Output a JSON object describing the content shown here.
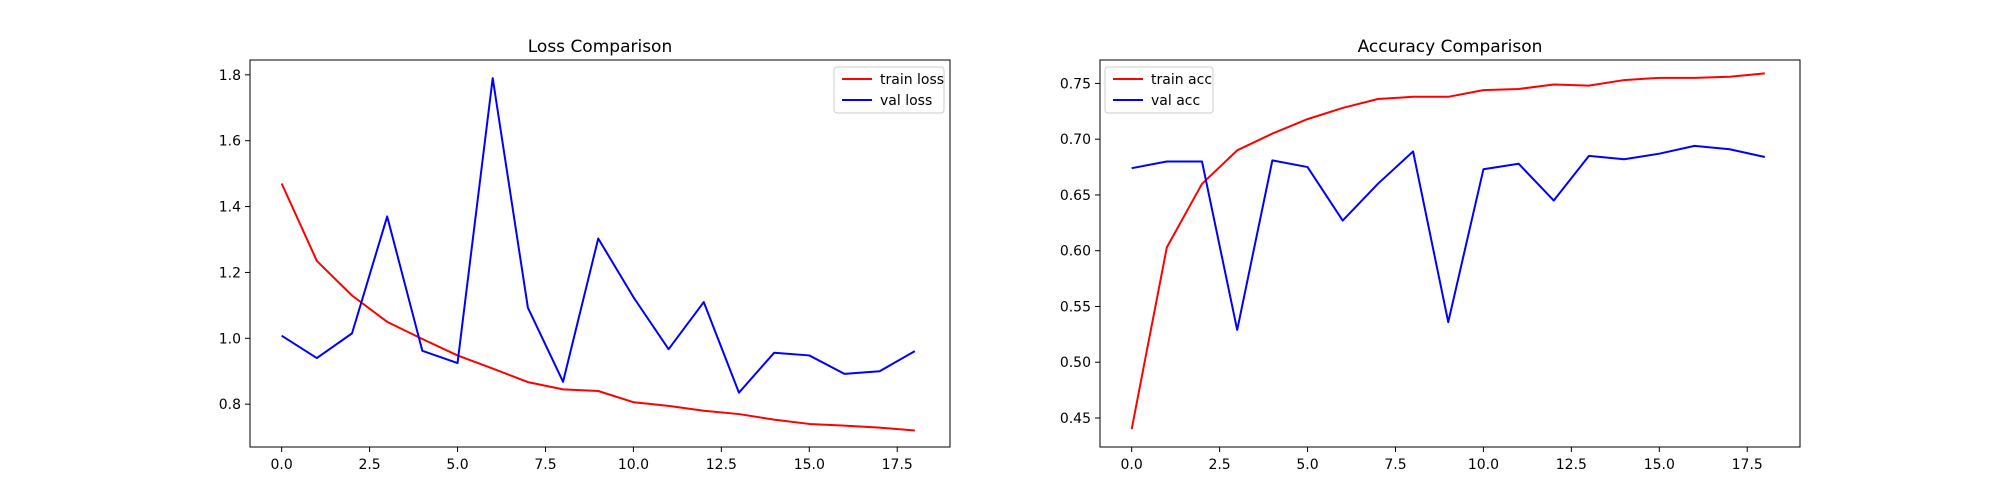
{
  "chart_data": [
    {
      "type": "line",
      "title": "Loss Comparison",
      "xlabel": "",
      "ylabel": "",
      "xlim": [
        -0.9,
        19.0
      ],
      "ylim": [
        0.67,
        1.845
      ],
      "xticks": [
        0.0,
        2.5,
        5.0,
        7.5,
        10.0,
        12.5,
        15.0,
        17.5
      ],
      "xtick_labels": [
        "0.0",
        "2.5",
        "5.0",
        "7.5",
        "10.0",
        "12.5",
        "15.0",
        "17.5"
      ],
      "yticks": [
        0.8,
        1.0,
        1.2,
        1.4,
        1.6,
        1.8
      ],
      "ytick_labels": [
        "0.8",
        "1.0",
        "1.2",
        "1.4",
        "1.6",
        "1.8"
      ],
      "grid": false,
      "legend_position": "top-right",
      "x": [
        0,
        1,
        2,
        3,
        4,
        5,
        6,
        7,
        8,
        9,
        10,
        11,
        12,
        13,
        14,
        15,
        16,
        17,
        18
      ],
      "series": [
        {
          "name": "train loss",
          "color": "#ff0000",
          "values": [
            1.47,
            1.235,
            1.13,
            1.05,
            0.998,
            0.948,
            0.908,
            0.867,
            0.845,
            0.84,
            0.806,
            0.795,
            0.78,
            0.77,
            0.753,
            0.74,
            0.735,
            0.729,
            0.72
          ]
        },
        {
          "name": "val loss",
          "color": "#0000ff",
          "values": [
            1.008,
            0.94,
            1.015,
            1.37,
            0.962,
            0.925,
            1.79,
            1.093,
            0.868,
            1.303,
            1.125,
            0.967,
            1.11,
            0.835,
            0.956,
            0.948,
            0.892,
            0.9,
            0.961
          ]
        }
      ]
    },
    {
      "type": "line",
      "title": "Accuracy Comparison",
      "xlabel": "",
      "ylabel": "",
      "xlim": [
        -0.9,
        19.0
      ],
      "ylim": [
        0.424,
        0.771
      ],
      "xticks": [
        0.0,
        2.5,
        5.0,
        7.5,
        10.0,
        12.5,
        15.0,
        17.5
      ],
      "xtick_labels": [
        "0.0",
        "2.5",
        "5.0",
        "7.5",
        "10.0",
        "12.5",
        "15.0",
        "17.5"
      ],
      "yticks": [
        0.45,
        0.5,
        0.55,
        0.6,
        0.65,
        0.7,
        0.75
      ],
      "ytick_labels": [
        "0.45",
        "0.50",
        "0.55",
        "0.60",
        "0.65",
        "0.70",
        "0.75"
      ],
      "grid": false,
      "legend_position": "top-left",
      "x": [
        0,
        1,
        2,
        3,
        4,
        5,
        6,
        7,
        8,
        9,
        10,
        11,
        12,
        13,
        14,
        15,
        16,
        17,
        18
      ],
      "series": [
        {
          "name": "train acc",
          "color": "#ff0000",
          "values": [
            0.44,
            0.603,
            0.66,
            0.69,
            0.705,
            0.718,
            0.728,
            0.736,
            0.738,
            0.738,
            0.744,
            0.745,
            0.749,
            0.748,
            0.753,
            0.755,
            0.755,
            0.756,
            0.759
          ]
        },
        {
          "name": "val acc",
          "color": "#0000ff",
          "values": [
            0.674,
            0.68,
            0.68,
            0.529,
            0.681,
            0.675,
            0.627,
            0.66,
            0.689,
            0.536,
            0.673,
            0.678,
            0.645,
            0.685,
            0.682,
            0.687,
            0.694,
            0.691,
            0.684
          ]
        }
      ]
    }
  ]
}
